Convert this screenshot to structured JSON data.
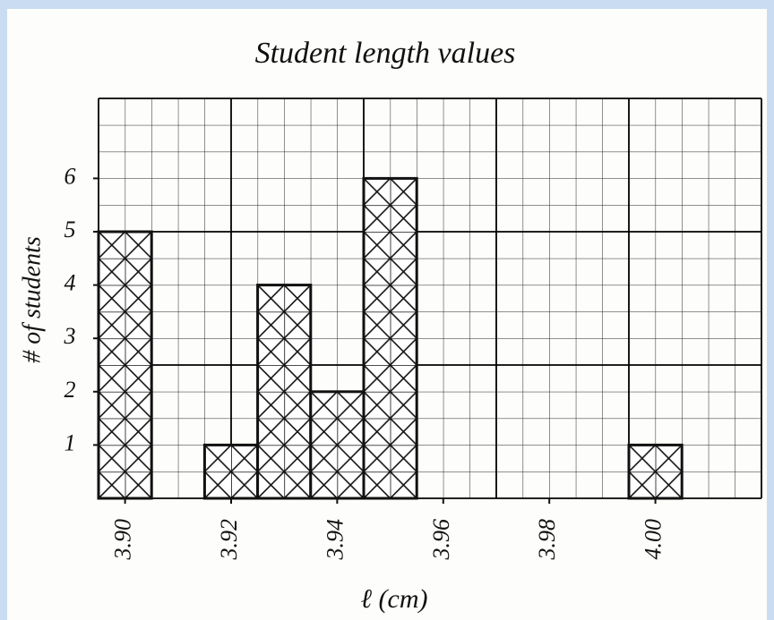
{
  "chart_data": {
    "type": "histogram",
    "title": "Student length values",
    "xlabel": "ℓ (cm)",
    "ylabel": "# of students",
    "bins": [
      3.895,
      3.905,
      3.915,
      3.925,
      3.935,
      3.945,
      3.955,
      3.965,
      3.975,
      3.985,
      3.995,
      4.005
    ],
    "values": [
      5,
      0,
      1,
      4,
      2,
      6,
      0,
      0,
      0,
      0,
      1
    ],
    "color": "#111111",
    "xlim": [
      3.895,
      4.02
    ],
    "ylim": [
      0,
      7.5
    ],
    "xticks": [
      {
        "value": 3.9,
        "label": "3.90"
      },
      {
        "value": 3.92,
        "label": "3.92"
      },
      {
        "value": 3.94,
        "label": "3.94"
      },
      {
        "value": 3.96,
        "label": "3.96"
      },
      {
        "value": 3.98,
        "label": "3.98"
      },
      {
        "value": 4.0,
        "label": "4.00"
      }
    ],
    "yticks": [
      1,
      2,
      3,
      4,
      5,
      6
    ]
  }
}
